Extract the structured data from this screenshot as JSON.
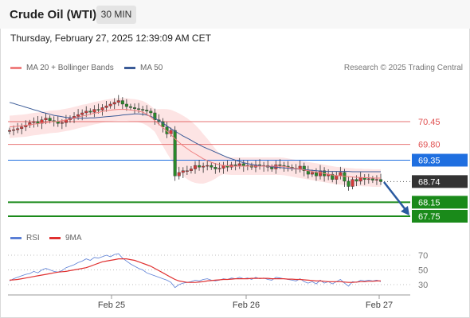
{
  "header": {
    "title": "Crude Oil (WTI)",
    "timeframe": "30 MIN"
  },
  "date_text": "Thursday, February 27, 2025 12:39:09 AM CET",
  "legend": {
    "ma20": "MA 20 + Bollinger Bands",
    "ma50": "MA 50",
    "research": "Research © 2025 Trading Central"
  },
  "rsi_legend": {
    "rsi": "RSI",
    "ma9": "9MA"
  },
  "colors": {
    "ma20": "#ef8080",
    "ma50": "#3b5b97",
    "bollinger_fill": "#fde4e4",
    "resistance": "#e05050",
    "pivot": "#1f6fe0",
    "support": "#1a8a1a",
    "last_price": "#333333",
    "rsi": "#5b7fd6",
    "rsi_ma": "#e03030",
    "up_candle": "#d43a3a",
    "down_candle": "#2a8a2a",
    "arrow": "#2a5aa0"
  },
  "chart_data": {
    "type": "candlestick",
    "instrument": "Crude Oil (WTI)",
    "timeframe": "30 MIN",
    "x_ticks": [
      "Feb 25",
      "Feb 26",
      "Feb 27"
    ],
    "price_levels": [
      {
        "value": 70.45,
        "label": "70.45",
        "kind": "resistance"
      },
      {
        "value": 69.8,
        "label": "69.80",
        "kind": "resistance"
      },
      {
        "value": 69.35,
        "label": "69.35",
        "kind": "pivot"
      },
      {
        "value": 68.74,
        "label": "68.74",
        "kind": "last"
      },
      {
        "value": 68.15,
        "label": "68.15",
        "kind": "support"
      },
      {
        "value": 67.75,
        "label": "67.75",
        "kind": "support"
      }
    ],
    "close": [
      70.2,
      70.22,
      70.25,
      70.3,
      70.35,
      70.42,
      70.45,
      70.4,
      70.5,
      70.55,
      70.48,
      70.45,
      70.4,
      70.42,
      70.5,
      70.55,
      70.6,
      70.65,
      70.7,
      70.75,
      70.72,
      70.8,
      70.78,
      70.85,
      70.9,
      70.95,
      71.0,
      71.05,
      70.95,
      70.88,
      70.85,
      70.82,
      70.8,
      70.78,
      70.75,
      70.7,
      70.5,
      70.45,
      70.3,
      70.1,
      70.2,
      68.9,
      69.0,
      69.05,
      69.05,
      69.1,
      69.2,
      69.15,
      69.18,
      69.2,
      69.15,
      69.1,
      69.12,
      69.2,
      69.15,
      69.22,
      69.2,
      69.25,
      69.18,
      69.2,
      69.15,
      69.22,
      69.18,
      69.2,
      69.15,
      69.1,
      69.22,
      69.2,
      69.18,
      69.15,
      69.12,
      69.1,
      69.18,
      69.05,
      68.95,
      69.0,
      68.9,
      69.05,
      68.9,
      68.95,
      68.8,
      68.9,
      69.0,
      68.75,
      68.6,
      68.8,
      68.75,
      68.85,
      68.8,
      68.82,
      68.78,
      68.8,
      68.74
    ],
    "ma20": [
      70.3,
      70.31,
      70.32,
      70.33,
      70.34,
      70.36,
      70.38,
      70.39,
      70.41,
      70.42,
      70.44,
      70.45,
      70.46,
      70.48,
      70.5,
      70.52,
      70.55,
      70.58,
      70.61,
      70.63,
      70.66,
      70.69,
      70.71,
      70.74,
      70.76,
      70.78,
      70.79,
      70.8,
      70.8,
      70.8,
      70.78,
      70.77,
      70.75,
      70.72,
      70.66,
      70.58,
      70.48,
      70.38,
      70.28,
      70.18,
      70.08,
      69.96,
      69.86,
      69.76,
      69.68,
      69.6,
      69.53,
      69.46,
      69.39,
      69.34,
      69.29,
      69.25,
      69.22,
      69.2,
      69.19,
      69.18,
      69.18,
      69.18,
      69.18,
      69.18,
      69.18,
      69.18,
      69.18,
      69.18,
      69.18,
      69.18,
      69.18,
      69.18,
      69.17,
      69.15,
      69.13,
      69.11,
      69.09,
      69.07,
      69.05,
      69.03,
      69.01,
      68.99,
      68.97,
      68.95,
      68.93,
      68.91,
      68.9,
      68.89,
      68.88,
      68.87,
      68.86,
      68.86,
      68.85,
      68.85,
      68.84,
      68.84,
      68.84
    ],
    "ma50": [
      71.0,
      70.97,
      70.93,
      70.9,
      70.86,
      70.83,
      70.79,
      70.76,
      70.72,
      70.69,
      70.66,
      70.63,
      70.61,
      70.59,
      70.57,
      70.56,
      70.55,
      70.55,
      70.55,
      70.55,
      70.56,
      70.56,
      70.57,
      70.58,
      70.59,
      70.6,
      70.61,
      70.62,
      70.64,
      70.65,
      70.66,
      70.67,
      70.67,
      70.66,
      70.64,
      70.6,
      70.55,
      70.48,
      70.41,
      70.33,
      70.25,
      70.18,
      70.11,
      70.04,
      69.98,
      69.92,
      69.85,
      69.79,
      69.73,
      69.68,
      69.63,
      69.58,
      69.53,
      69.48,
      69.43,
      69.39,
      69.35,
      69.31,
      69.28,
      69.25,
      69.23,
      69.21,
      69.19,
      69.18,
      69.17,
      69.16,
      69.15,
      69.14,
      69.13,
      69.12,
      69.11,
      69.1,
      69.09,
      69.08,
      69.07,
      69.06,
      69.05,
      69.04,
      69.03,
      69.03,
      69.03,
      69.03,
      69.03,
      69.03,
      69.03,
      69.02,
      69.02,
      69.02,
      69.02,
      69.02,
      69.02,
      69.02,
      69.02
    ],
    "rsi": {
      "levels": [
        70,
        50,
        30
      ],
      "rsi": [
        35,
        38,
        40,
        42,
        44,
        45,
        48,
        46,
        50,
        52,
        50,
        48,
        47,
        49,
        53,
        55,
        57,
        60,
        62,
        65,
        63,
        67,
        66,
        68,
        70,
        68,
        71,
        72,
        66,
        62,
        58,
        55,
        52,
        50,
        46,
        44,
        42,
        40,
        38,
        36,
        33,
        26,
        30,
        32,
        33,
        34,
        36,
        35,
        37,
        38,
        36,
        35,
        36,
        38,
        37,
        39,
        38,
        40,
        38,
        39,
        37,
        40,
        38,
        39,
        37,
        36,
        40,
        39,
        38,
        37,
        36,
        35,
        38,
        34,
        32,
        34,
        31,
        36,
        32,
        34,
        31,
        34,
        37,
        32,
        28,
        34,
        33,
        36,
        35,
        36,
        35,
        36,
        34
      ],
      "ma9": [
        36,
        36.5,
        37,
        38,
        39,
        40,
        41,
        42,
        43,
        44,
        45,
        46,
        47,
        47.5,
        48,
        49,
        50,
        51,
        52,
        53,
        55,
        57,
        59,
        61,
        62,
        63,
        64,
        65,
        65,
        65,
        64,
        63,
        61,
        59,
        57,
        55,
        52,
        49,
        46,
        43,
        40,
        37,
        35,
        34,
        33,
        33,
        33,
        33.5,
        34,
        35,
        35.5,
        36,
        36.5,
        37,
        37,
        37.5,
        38,
        38,
        38,
        38,
        38.5,
        38.5,
        38.5,
        38.5,
        38.5,
        38,
        38,
        38,
        38,
        37.5,
        37.5,
        37,
        37,
        36.5,
        36,
        35.5,
        35,
        35,
        34.5,
        34,
        34,
        34,
        34,
        33.5,
        33,
        33,
        33.5,
        34,
        34,
        34.5,
        34.5,
        35,
        35
      ]
    }
  }
}
